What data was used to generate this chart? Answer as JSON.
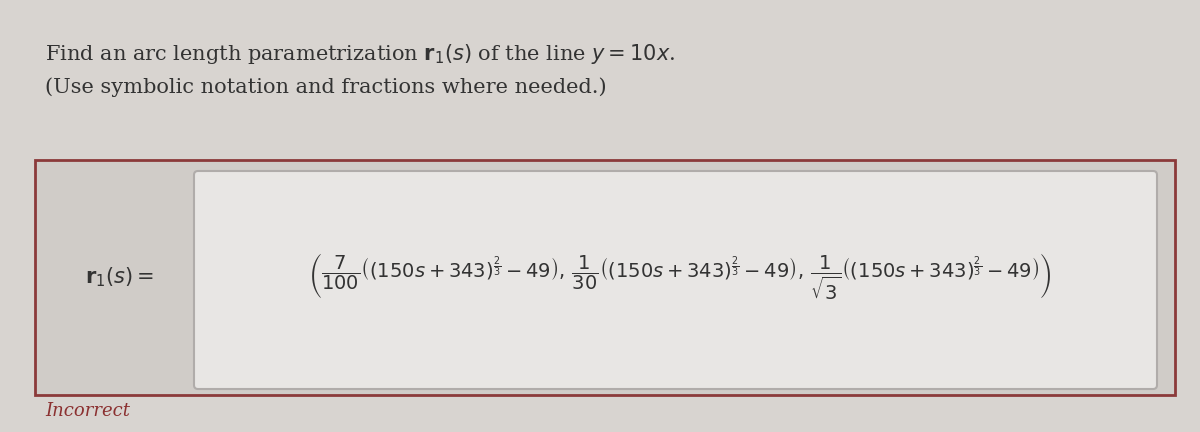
{
  "title_line1": "Find an arc length parametrization $\\mathbf{r}_1(s)$ of the line $y = 10x$.",
  "title_line2": "(Use symbolic notation and fractions where needed.)",
  "incorrect_label": "Incorrect",
  "bg_color": "#d8d4d0",
  "outer_box_color": "#8b3a3a",
  "outer_box_face": "#d0ccc8",
  "inner_box_color": "#b0acaa",
  "inner_box_face": "#e8e6e4",
  "text_color": "#333333",
  "incorrect_color": "#8b3030",
  "title_fontsize": 15,
  "formula_fontsize": 14,
  "label_fontsize": 15
}
